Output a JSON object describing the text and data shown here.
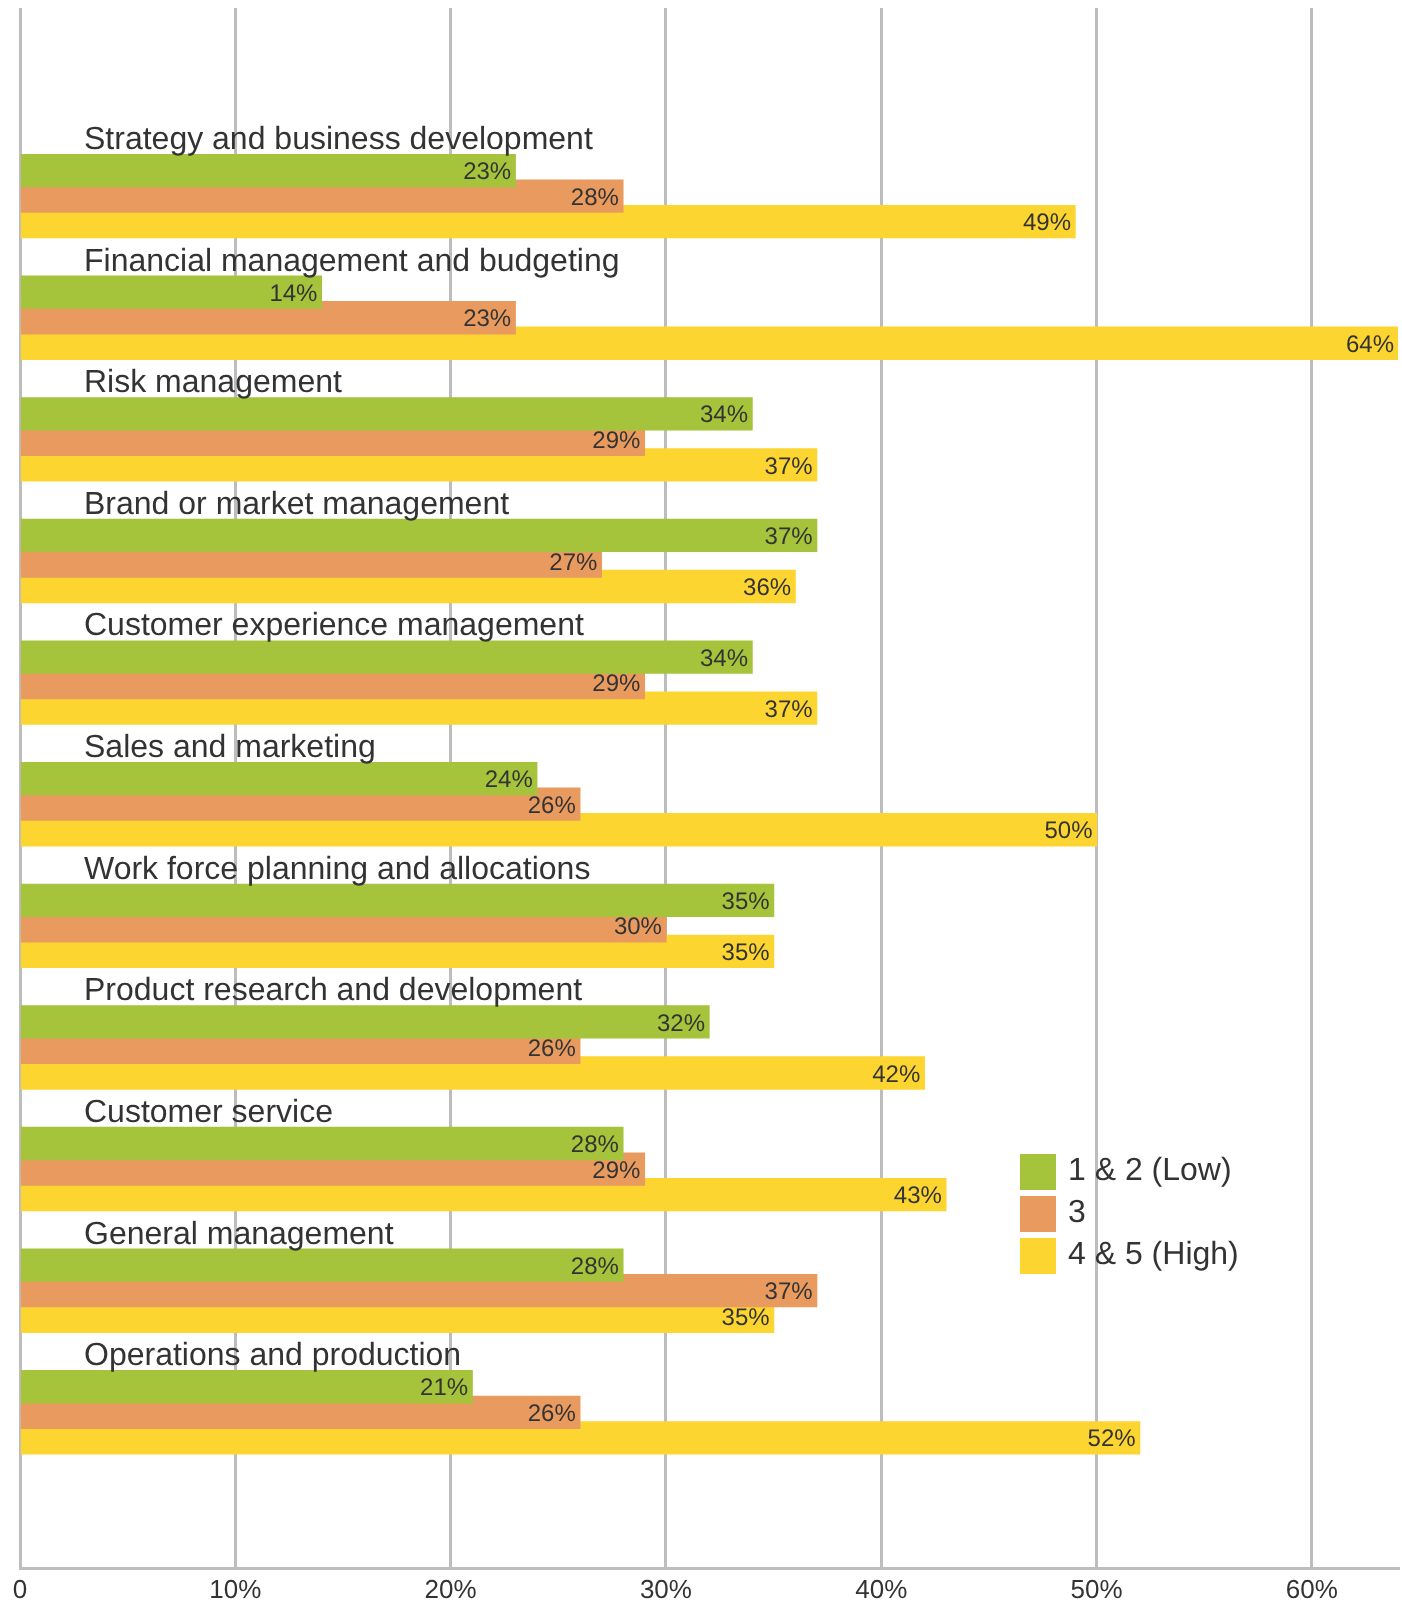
{
  "chart_data": {
    "type": "bar",
    "orientation": "horizontal",
    "categories": [
      "Strategy and business development",
      "Financial management and budgeting",
      "Risk management",
      "Brand or market management",
      "Customer experience management",
      "Sales and marketing",
      "Work force planning and allocations",
      "Product research and development",
      "Customer service",
      "General management",
      "Operations and production"
    ],
    "series": [
      {
        "name": "1 & 2 (Low)",
        "color": "#a5c33b",
        "values": [
          23,
          14,
          34,
          37,
          34,
          24,
          35,
          32,
          28,
          28,
          21
        ],
        "value_labels": [
          "23%",
          "14%",
          "34%",
          "37%",
          "34%",
          "24%",
          "35%",
          "32%",
          "28%",
          "28%",
          "21%"
        ]
      },
      {
        "name": "3",
        "color": "#e99b5f",
        "values": [
          28,
          23,
          29,
          27,
          29,
          26,
          30,
          26,
          29,
          37,
          26
        ],
        "value_labels": [
          "28%",
          "23%",
          "29%",
          "27%",
          "29%",
          "26%",
          "30%",
          "26%",
          "29%",
          "37%",
          "26%"
        ]
      },
      {
        "name": "4 & 5 (High)",
        "color": "#fdd530",
        "values": [
          49,
          64,
          37,
          36,
          37,
          50,
          35,
          42,
          43,
          35,
          52
        ],
        "value_labels": [
          "49%",
          "64%",
          "37%",
          "36%",
          "37%",
          "50%",
          "35%",
          "42%",
          "43%",
          "35%",
          "52%"
        ]
      }
    ],
    "xlim": [
      0,
      64
    ],
    "xticks": [
      0,
      {
        "value": 10,
        "label": "10%"
      },
      {
        "value": 20,
        "label": "20%"
      },
      {
        "value": 30,
        "label": "30%"
      },
      {
        "value": 40,
        "label": "40%"
      },
      {
        "value": 50,
        "label": "50%"
      },
      {
        "value": 60,
        "label": "60%"
      }
    ],
    "grid": "x",
    "legend": "right"
  }
}
